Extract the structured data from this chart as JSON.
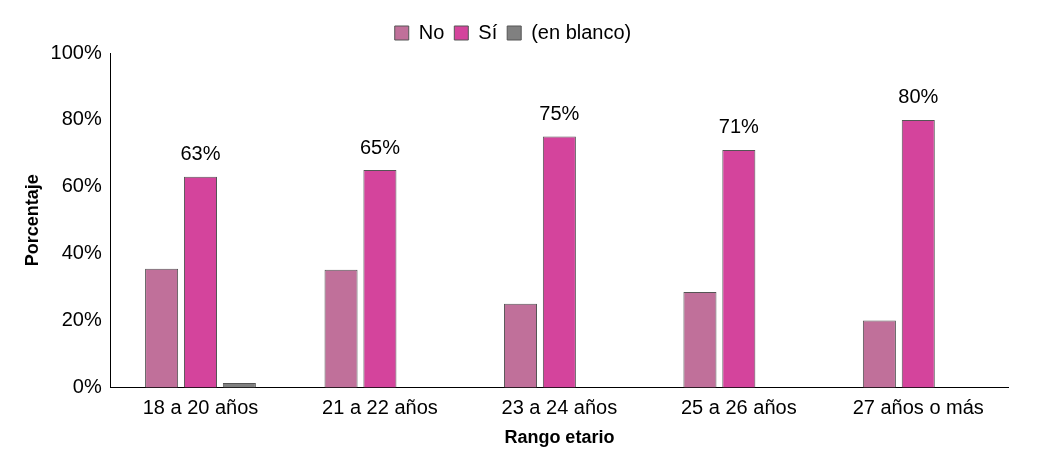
{
  "chart_data": {
    "type": "bar",
    "xlabel": "Rango etario",
    "ylabel": "Porcentaje",
    "categories": [
      "18 a 20 años",
      "21 a 22 años",
      "23 a 24 años",
      "25 a 26 años",
      "27 años o más"
    ],
    "series": [
      {
        "name": "No",
        "color": "#c0709a",
        "values": [
          35.5,
          35.2,
          25,
          28.5,
          20
        ]
      },
      {
        "name": "Sí",
        "color": "#d4449c",
        "values": [
          63,
          65,
          75,
          71,
          80
        ],
        "value_labels": [
          "63%",
          "65%",
          "75%",
          "71%",
          "80%"
        ]
      },
      {
        "name": "(en blanco)",
        "color": "#808080",
        "values": [
          1.3,
          null,
          null,
          null,
          null
        ]
      }
    ],
    "ylim": [
      0,
      100
    ],
    "yticks": [
      {
        "value": 0,
        "label": "0%"
      },
      {
        "value": 20,
        "label": "20%"
      },
      {
        "value": 40,
        "label": "40%"
      },
      {
        "value": 60,
        "label": "60%"
      },
      {
        "value": 80,
        "label": "80%"
      },
      {
        "value": 100,
        "label": "100%"
      }
    ],
    "grid": false,
    "legend": "top"
  }
}
